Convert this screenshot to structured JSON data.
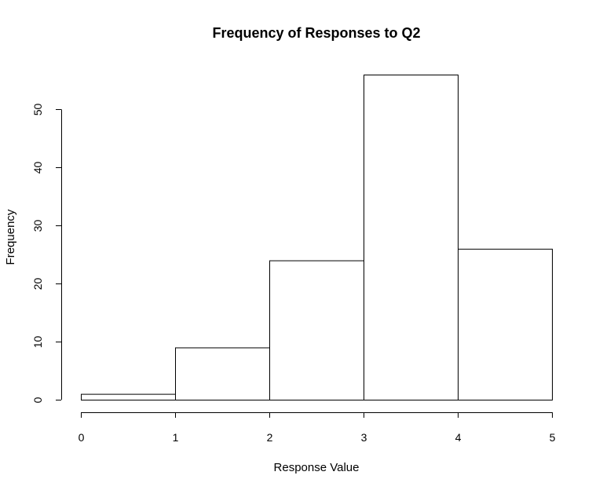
{
  "chart_data": {
    "type": "bar",
    "title": "Frequency of Responses to Q2",
    "xlabel": "Response Value",
    "ylabel": "Frequency",
    "bins": [
      [
        0,
        1
      ],
      [
        1,
        2
      ],
      [
        2,
        3
      ],
      [
        3,
        4
      ],
      [
        4,
        5
      ]
    ],
    "values": [
      1,
      9,
      24,
      56,
      26
    ],
    "xlim": [
      0,
      5
    ],
    "ylim": [
      0,
      56
    ],
    "x_ticks": [
      0,
      1,
      2,
      3,
      4,
      5
    ],
    "y_ticks": [
      0,
      10,
      20,
      30,
      40,
      50
    ],
    "grid": false,
    "legend": "none",
    "bar_fill": "#ffffff",
    "bar_stroke": "#000000"
  }
}
